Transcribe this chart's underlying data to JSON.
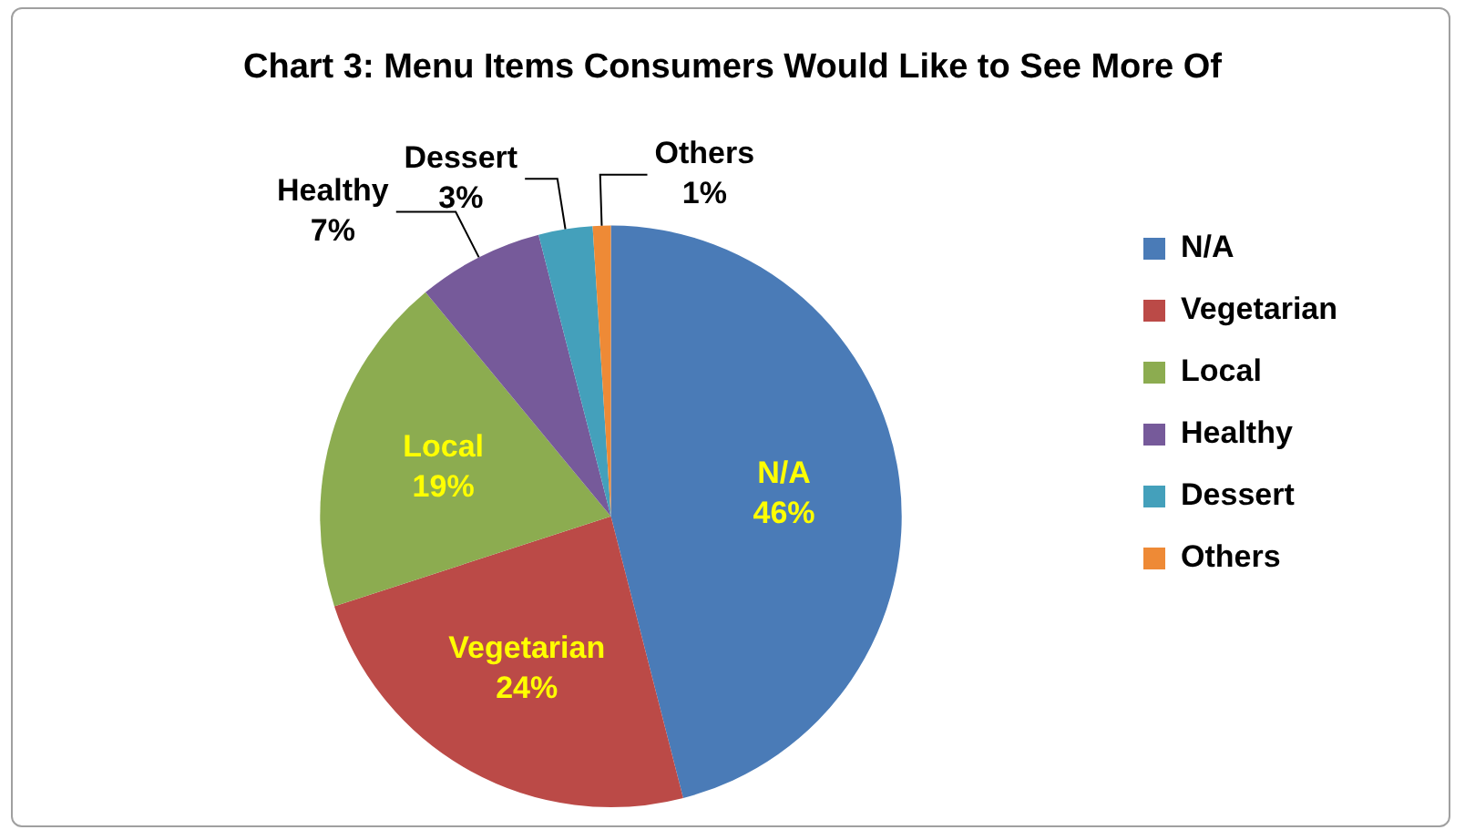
{
  "chart_data": {
    "type": "pie",
    "title": "Chart 3: Menu Items Consumers Would Like to See More Of",
    "categories": [
      "N/A",
      "Vegetarian",
      "Local",
      "Healthy",
      "Dessert",
      "Others"
    ],
    "values": [
      46,
      24,
      19,
      7,
      3,
      1
    ],
    "value_labels": [
      "46%",
      "24%",
      "19%",
      "7%",
      "3%",
      "1%"
    ],
    "colors": [
      "#4a7bb7",
      "#bb4a47",
      "#8cac50",
      "#765a9a",
      "#44a0bb",
      "#ee8a36"
    ],
    "legend": "right"
  }
}
